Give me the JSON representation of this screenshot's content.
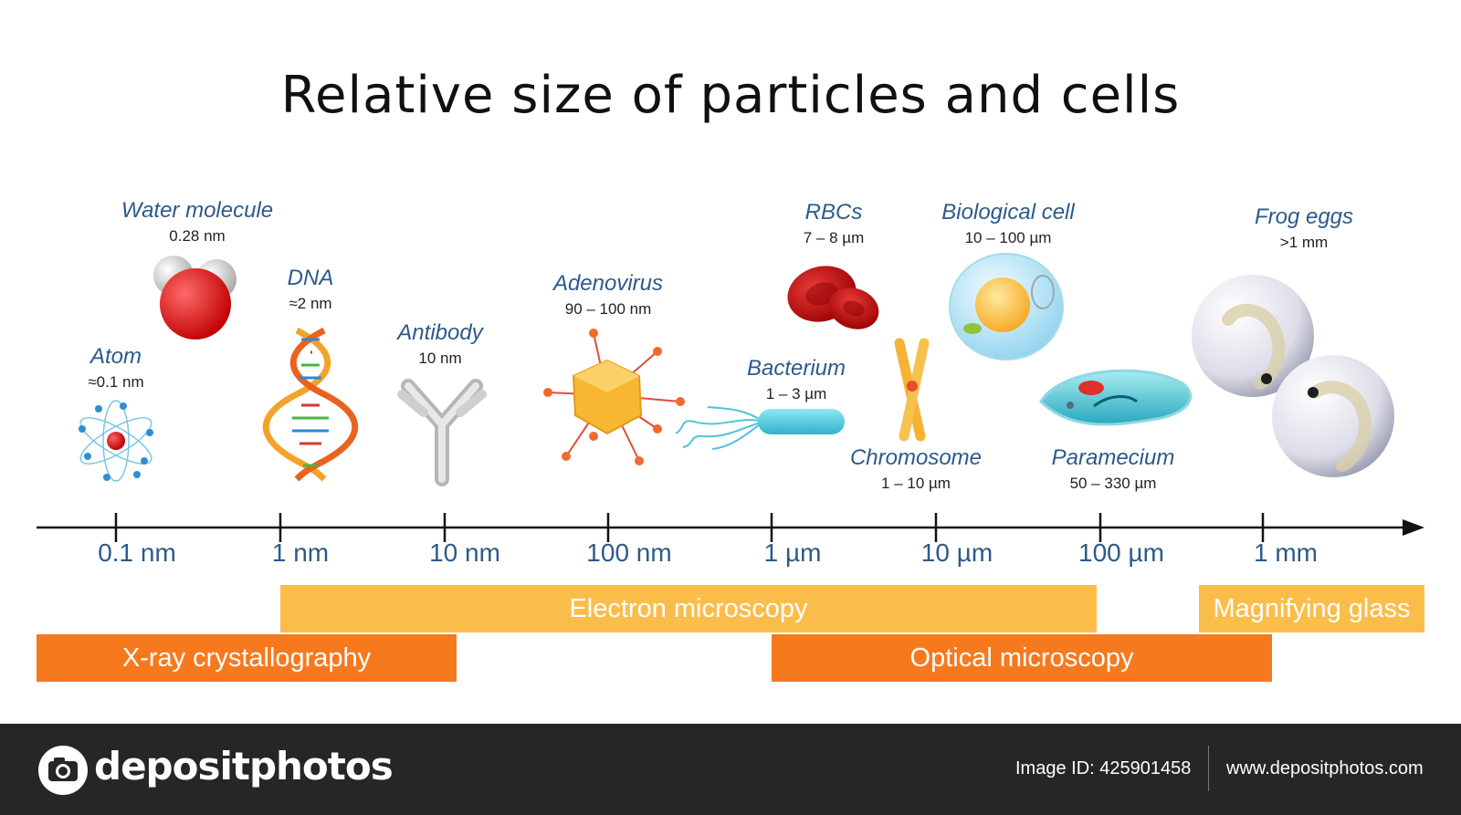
{
  "title": "Relative size of particles and cells",
  "items": [
    {
      "name": "Atom",
      "size": "≈0.1 nm"
    },
    {
      "name": "Water molecule",
      "size": "0.28 nm"
    },
    {
      "name": "DNA",
      "size": "≈2 nm"
    },
    {
      "name": "Antibody",
      "size": "10 nm"
    },
    {
      "name": "Adenovirus",
      "size": "90 – 100 nm"
    },
    {
      "name": "RBCs",
      "size": "7 – 8 µm"
    },
    {
      "name": "Bacterium",
      "size": "1 – 3 µm"
    },
    {
      "name": "Biological cell",
      "size": "10 – 100 µm"
    },
    {
      "name": "Chromosome",
      "size": "1 – 10 µm"
    },
    {
      "name": "Paramecium",
      "size": "50 – 330 µm"
    },
    {
      "name": "Frog eggs",
      "size": ">1 mm"
    }
  ],
  "axis_ticks": [
    "0.1 nm",
    "1 nm",
    "10 nm",
    "100 nm",
    "1 µm",
    "10 µm",
    "100 µm",
    "1 mm"
  ],
  "methods": [
    {
      "label": "Electron microscopy",
      "color": "#fbbd4a"
    },
    {
      "label": "Magnifying glass",
      "color": "#fbbd4a"
    },
    {
      "label": "X-ray crystallography",
      "color": "#f7791e"
    },
    {
      "label": "Optical microscopy",
      "color": "#f7791e"
    }
  ],
  "footer": {
    "brand": "depositphotos",
    "image_id": "Image ID: 425901458",
    "site": "www.depositphotos.com"
  }
}
